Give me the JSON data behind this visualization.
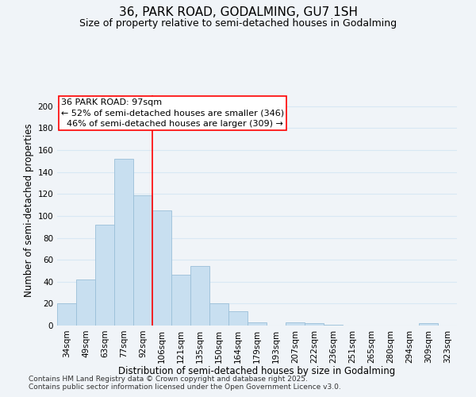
{
  "title": "36, PARK ROAD, GODALMING, GU7 1SH",
  "subtitle": "Size of property relative to semi-detached houses in Godalming",
  "xlabel": "Distribution of semi-detached houses by size in Godalming",
  "ylabel": "Number of semi-detached properties",
  "bar_labels": [
    "34sqm",
    "49sqm",
    "63sqm",
    "77sqm",
    "92sqm",
    "106sqm",
    "121sqm",
    "135sqm",
    "150sqm",
    "164sqm",
    "179sqm",
    "193sqm",
    "207sqm",
    "222sqm",
    "236sqm",
    "251sqm",
    "265sqm",
    "280sqm",
    "294sqm",
    "309sqm",
    "323sqm"
  ],
  "bar_values": [
    20,
    42,
    92,
    152,
    119,
    105,
    46,
    54,
    20,
    13,
    3,
    0,
    3,
    2,
    1,
    0,
    0,
    0,
    0,
    2,
    0
  ],
  "bar_color": "#c8dff0",
  "bar_edge_color": "#9abfd8",
  "ylim": [
    0,
    210
  ],
  "yticks": [
    0,
    20,
    40,
    60,
    80,
    100,
    120,
    140,
    160,
    180,
    200
  ],
  "vline_pos": 4.5,
  "annotation_line1": "36 PARK ROAD: 97sqm",
  "annotation_line2": "← 52% of semi-detached houses are smaller (346)",
  "annotation_line3": "  46% of semi-detached houses are larger (309) →",
  "footer1": "Contains HM Land Registry data © Crown copyright and database right 2025.",
  "footer2": "Contains public sector information licensed under the Open Government Licence v3.0.",
  "background_color": "#f0f4f8",
  "grid_color": "#d8e8f4",
  "title_fontsize": 11,
  "subtitle_fontsize": 9,
  "axis_label_fontsize": 8.5,
  "tick_fontsize": 7.5,
  "annotation_fontsize": 8,
  "footer_fontsize": 6.5
}
